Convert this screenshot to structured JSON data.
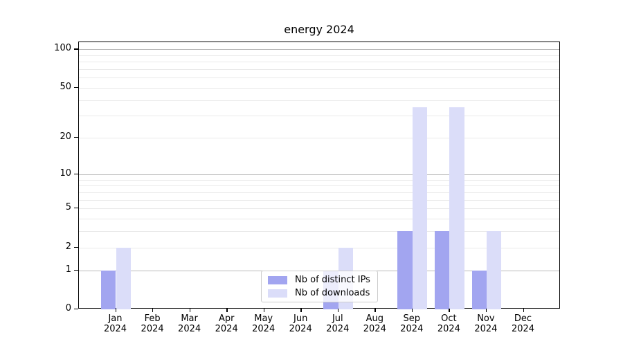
{
  "chart_data": {
    "type": "bar",
    "title": "energy 2024",
    "categories": [
      "Jan",
      "Feb",
      "Mar",
      "Apr",
      "May",
      "Jun",
      "Jul",
      "Aug",
      "Sep",
      "Oct",
      "Nov",
      "Dec"
    ],
    "category_year": "2024",
    "series": [
      {
        "name": "Nb of distinct IPs",
        "color": "#a2a5f0",
        "values": [
          1,
          0,
          0,
          0,
          0,
          0,
          1,
          0,
          3,
          3,
          1,
          0
        ]
      },
      {
        "name": "Nb of downloads",
        "color": "#dbddf9",
        "values": [
          2,
          0,
          0,
          0,
          0,
          0,
          2,
          0,
          35,
          35,
          3,
          0
        ]
      }
    ],
    "xlabel": "",
    "ylabel": "",
    "y_scale": "log10(value+1)",
    "ylim": [
      0,
      113.5
    ],
    "xlim_units": [
      -1,
      12
    ],
    "bar_width_units": 0.4,
    "y_tick_values": [
      0,
      1,
      2,
      5,
      10,
      20,
      50,
      100
    ],
    "y_tick_labels": [
      "0",
      "1",
      "2",
      "5",
      "10",
      "20",
      "50",
      "100"
    ],
    "y_major_gridlines": [
      1,
      10,
      100
    ],
    "y_minor_gridlines": [
      2,
      3,
      4,
      5,
      6,
      7,
      8,
      9,
      20,
      30,
      40,
      50,
      60,
      70,
      80,
      90
    ],
    "grid": true,
    "legend_position": "bottom-center-over-plot"
  },
  "legend": {
    "items": [
      {
        "label": "Nb of distinct IPs",
        "color": "#a2a5f0"
      },
      {
        "label": "Nb of downloads",
        "color": "#dbddf9"
      }
    ]
  },
  "colors": {
    "background": "#ffffff",
    "axis": "#000000",
    "major_grid": "#b9b9b9",
    "minor_grid": "#e9e9e9",
    "text": "#000000",
    "legend_border": "#cccccc",
    "legend_background": "rgba(255,255,255,0.8)"
  }
}
